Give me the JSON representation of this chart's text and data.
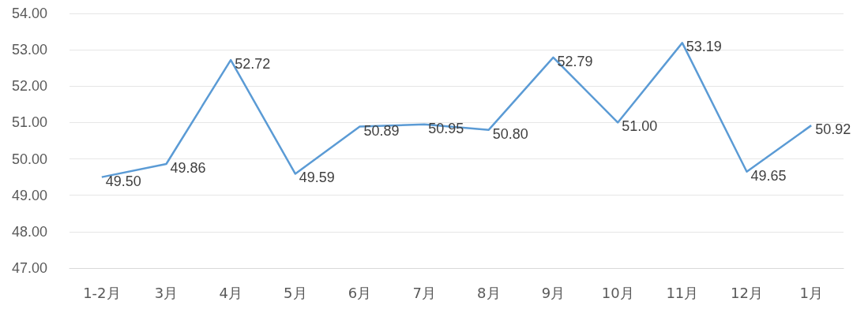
{
  "chart_data": {
    "type": "line",
    "categories": [
      "1-2月",
      "3月",
      "4月",
      "5月",
      "6月",
      "7月",
      "8月",
      "9月",
      "10月",
      "11月",
      "12月",
      "1月"
    ],
    "series": [
      {
        "color": "#5b9bd5",
        "values": [
          49.5,
          49.86,
          52.72,
          49.59,
          50.89,
          50.95,
          50.8,
          52.79,
          51.0,
          53.19,
          49.65,
          50.92
        ],
        "value_labels": [
          "49.50",
          "49.86",
          "52.72",
          "49.59",
          "50.89",
          "50.95",
          "50.80",
          "52.79",
          "51.00",
          "53.19",
          "49.65",
          "50.92"
        ]
      }
    ],
    "ylim": [
      47,
      54
    ],
    "yticks": [
      {
        "value": 47,
        "label": "47.00"
      },
      {
        "value": 48,
        "label": "48.00"
      },
      {
        "value": 49,
        "label": "49.00"
      },
      {
        "value": 50,
        "label": "50.00"
      },
      {
        "value": 51,
        "label": "51.00"
      },
      {
        "value": 52,
        "label": "52.00"
      },
      {
        "value": 53,
        "label": "53.00"
      },
      {
        "value": 54,
        "label": "54.00"
      }
    ],
    "grid": "y",
    "marker": "none",
    "line_style": "solid"
  }
}
